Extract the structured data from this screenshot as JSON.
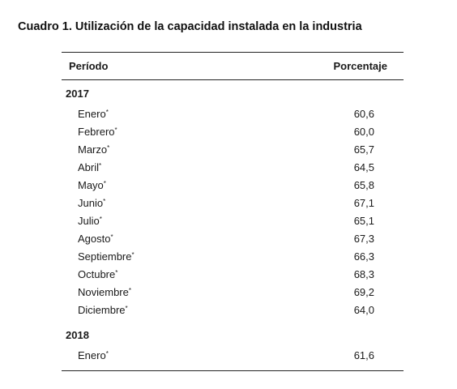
{
  "title": "Cuadro 1. Utilización de la capacidad instalada en la industria",
  "table": {
    "headers": {
      "period": "Período",
      "percentage": "Porcentaje"
    },
    "marker": "*",
    "groups": [
      {
        "year": "2017",
        "rows": [
          {
            "month": "Enero",
            "value": "60,6"
          },
          {
            "month": "Febrero",
            "value": "60,0"
          },
          {
            "month": "Marzo",
            "value": "65,7"
          },
          {
            "month": "Abril",
            "value": "64,5"
          },
          {
            "month": "Mayo",
            "value": "65,8"
          },
          {
            "month": "Junio",
            "value": "67,1"
          },
          {
            "month": "Julio",
            "value": "65,1"
          },
          {
            "month": "Agosto",
            "value": "67,3"
          },
          {
            "month": "Septiembre",
            "value": "66,3"
          },
          {
            "month": "Octubre",
            "value": "68,3"
          },
          {
            "month": "Noviembre",
            "value": "69,2"
          },
          {
            "month": "Diciembre",
            "value": "64,0"
          }
        ]
      },
      {
        "year": "2018",
        "rows": [
          {
            "month": "Enero",
            "value": "61,6"
          }
        ]
      }
    ]
  }
}
